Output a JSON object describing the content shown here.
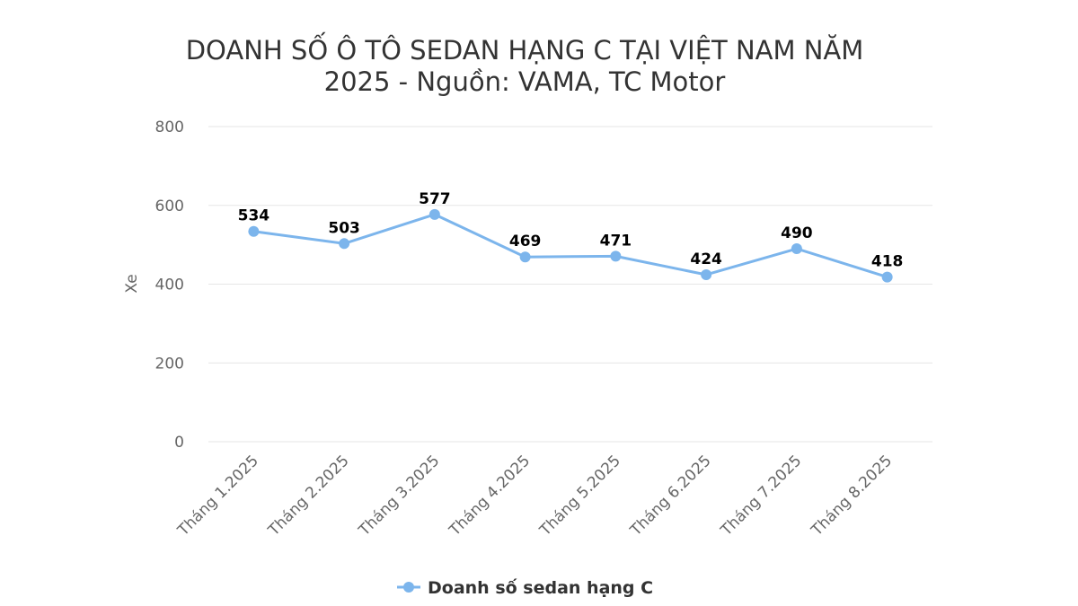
{
  "chart_data": {
    "type": "line",
    "title": "DOANH SỐ Ô TÔ SEDAN HẠNG C TẠI VIỆT NAM NĂM 2025 - Nguồn: VAMA, TC Motor",
    "title_lines": [
      "DOANH SỐ Ô TÔ SEDAN HẠNG C TẠI VIỆT NAM NĂM",
      "2025 - Nguồn: VAMA, TC Motor"
    ],
    "xlabel": "",
    "ylabel": "Xe",
    "ylim": [
      0,
      800
    ],
    "yticks": [
      0,
      200,
      400,
      600,
      800
    ],
    "grid": true,
    "legend_position": "bottom",
    "categories": [
      "Tháng 1.2025",
      "Tháng 2.2025",
      "Tháng 3.2025",
      "Tháng 4.2025",
      "Tháng 5.2025",
      "Tháng 6.2025",
      "Tháng 7.2025",
      "Tháng 8.2025"
    ],
    "series": [
      {
        "name": "Doanh số sedan hạng C",
        "color": "#7cb5ec",
        "values": [
          534,
          503,
          577,
          469,
          471,
          424,
          490,
          418
        ]
      }
    ]
  }
}
